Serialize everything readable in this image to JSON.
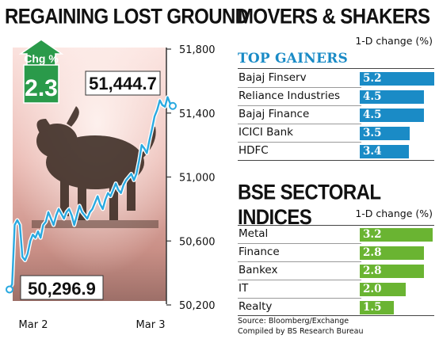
{
  "left_panel": {
    "title": "REGAINING LOST GROUND",
    "change_badge": {
      "label": "Chg %",
      "value": "2.3",
      "color": "#2a9a4a"
    },
    "start_label": "50,296.9",
    "end_label": "51,444.7"
  },
  "chart_data": {
    "type": "line",
    "title": "REGAINING LOST GROUND",
    "xlabel": "",
    "ylabel": "",
    "x_ticks": [
      "Mar 2",
      "Mar 3"
    ],
    "y_ticks": [
      "51,800",
      "51,400",
      "51,000",
      "50,600",
      "50,200"
    ],
    "y_tick_values": [
      51800,
      51400,
      51000,
      50600,
      50200
    ],
    "ylim": [
      50200,
      51800
    ],
    "grid": false,
    "line_color": "#29a9e0",
    "series": [
      {
        "values": [
          50296.9,
          50330,
          50700,
          50730,
          50700,
          50500,
          50480,
          50520,
          50600,
          50640,
          50620,
          50660,
          50620,
          50700,
          50720,
          50780,
          50740,
          50700,
          50760,
          50800,
          50770,
          50740,
          50780,
          50800,
          50760,
          50700,
          50760,
          50820,
          50780,
          50760,
          50740,
          50780,
          50800,
          50840,
          50880,
          50830,
          50800,
          50860,
          50900,
          50880,
          50920,
          50960,
          50920,
          50900,
          50950,
          50980,
          51000,
          51020,
          50980,
          51020,
          51100,
          51200,
          51180,
          51150,
          51230,
          51300,
          51380,
          51420,
          51480,
          51450,
          51440,
          51500,
          51460,
          51444.7
        ]
      }
    ],
    "annotations": [
      {
        "text": "50,296.9",
        "value": 50296.9
      },
      {
        "text": "51,444.7",
        "value": 51444.7
      },
      {
        "text": "Chg %",
        "value": "2.3"
      }
    ]
  },
  "right_panel": {
    "title": "MOVERS & SHAKERS",
    "change_header": "1-D change (%)",
    "top_gainers_label": "TOP GAINERS",
    "gainer_color": "#1a8bc6",
    "gainers": [
      {
        "name": "Bajaj Finserv",
        "value": 5.2,
        "label": "5.2"
      },
      {
        "name": "Reliance Industries",
        "value": 4.5,
        "label": "4.5"
      },
      {
        "name": "Bajaj Finance",
        "value": 4.5,
        "label": "4.5"
      },
      {
        "name": "ICICI Bank",
        "value": 3.5,
        "label": "3.5"
      },
      {
        "name": "HDFC",
        "value": 3.4,
        "label": "3.4"
      }
    ],
    "bse_title": "BSE SECTORAL INDICES",
    "bse_change_header": "1-D change (%)",
    "sector_color": "#6ab432",
    "sectors": [
      {
        "name": "Metal",
        "value": 3.2,
        "label": "3.2"
      },
      {
        "name": "Finance",
        "value": 2.8,
        "label": "2.8"
      },
      {
        "name": "Bankex",
        "value": 2.8,
        "label": "2.8"
      },
      {
        "name": "IT",
        "value": 2.0,
        "label": "2.0"
      },
      {
        "name": "Realty",
        "value": 1.5,
        "label": "1.5"
      }
    ],
    "source_line1": "Source: Bloomberg/Exchange",
    "source_line2": "Compiled by BS Research Bureau"
  }
}
